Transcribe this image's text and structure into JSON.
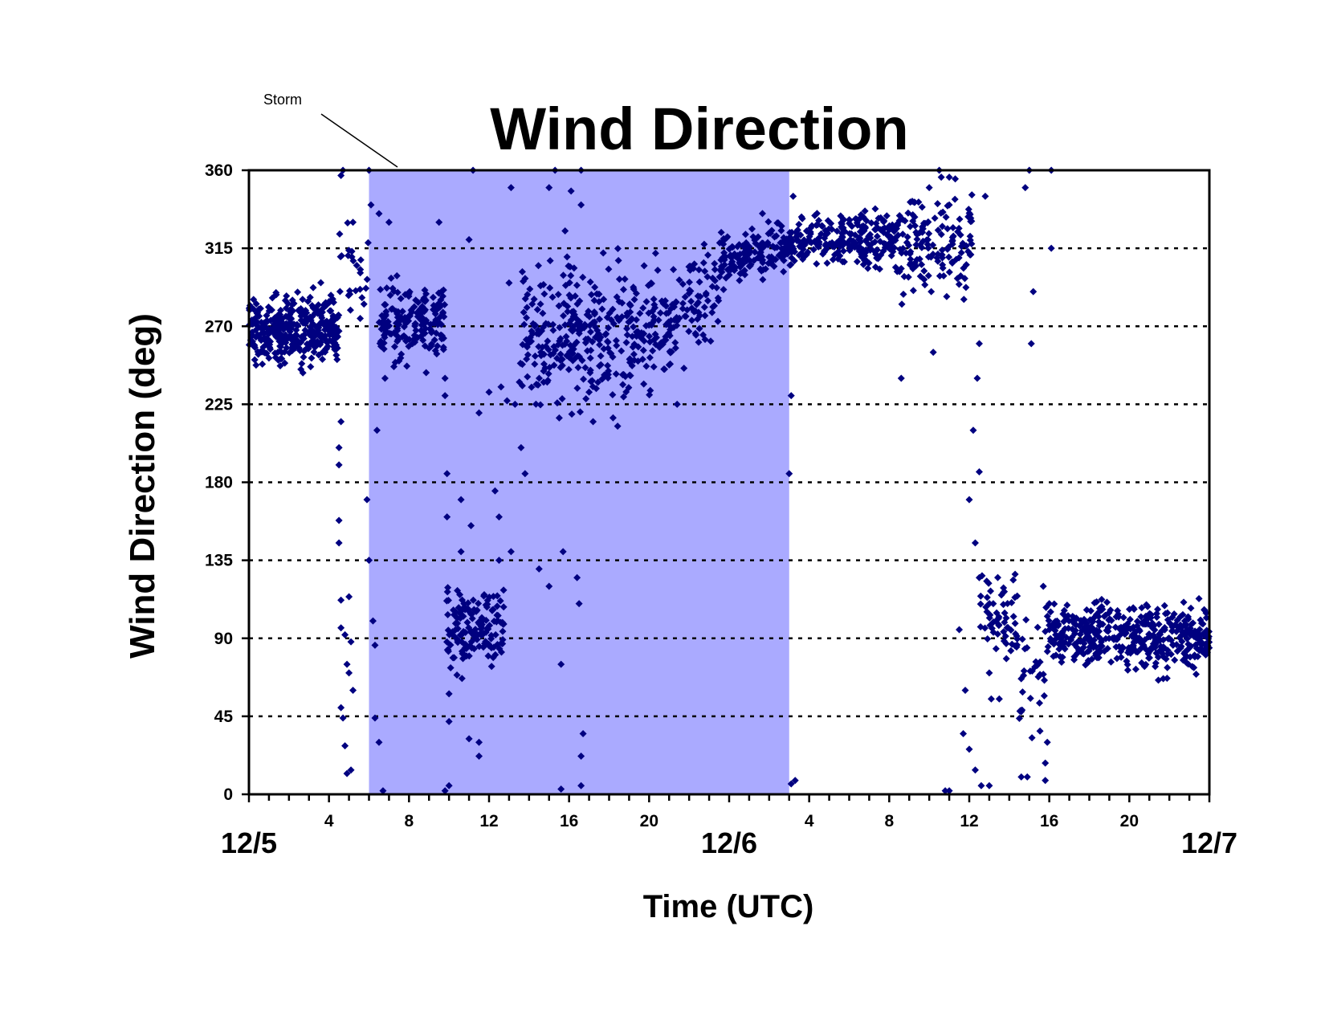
{
  "chart_data": {
    "type": "scatter",
    "title": "Wind Direction",
    "xlabel": "Time (UTC)",
    "ylabel": "Wind Direction (deg)",
    "ylim": [
      0,
      360
    ],
    "xlim_hours": [
      0,
      48
    ],
    "yticks": [
      "0",
      "45",
      "90",
      "135",
      "180",
      "225",
      "270",
      "315",
      "360"
    ],
    "xticks": [
      {
        "hour": 4,
        "label": "4"
      },
      {
        "hour": 8,
        "label": "8"
      },
      {
        "hour": 12,
        "label": "12"
      },
      {
        "hour": 16,
        "label": "16"
      },
      {
        "hour": 20,
        "label": "20"
      },
      {
        "hour": 28,
        "label": "4"
      },
      {
        "hour": 32,
        "label": "8"
      },
      {
        "hour": 36,
        "label": "12"
      },
      {
        "hour": 40,
        "label": "16"
      },
      {
        "hour": 44,
        "label": "20"
      }
    ],
    "date_labels": [
      {
        "hour": 0,
        "label": "12/5"
      },
      {
        "hour": 24,
        "label": "12/6"
      },
      {
        "hour": 48,
        "label": "12/7"
      }
    ],
    "grid": "horizontal dotted at 45,90,135,180,225,270,315",
    "shaded_region": {
      "label": "Storm",
      "start_hour": 6,
      "end_hour": 27,
      "color": "#aaaaff"
    },
    "marker": {
      "shape": "diamond",
      "color": "#000080"
    },
    "segments": [
      {
        "from": 0,
        "to": 4.5,
        "center": 268,
        "spread": 16,
        "trend": 0,
        "density": 80
      },
      {
        "from": 4.5,
        "to": 6,
        "center": 300,
        "spread": 20,
        "trend": 0,
        "density": 18
      },
      {
        "from": 6.5,
        "to": 9.8,
        "center": 272,
        "spread": 18,
        "trend": 0,
        "density": 55
      },
      {
        "from": 9.8,
        "to": 12.8,
        "center": 95,
        "spread": 18,
        "trend": 0,
        "density": 50
      },
      {
        "from": 13.5,
        "to": 20.5,
        "center": 265,
        "spread": 30,
        "trend": 10,
        "density": 48
      },
      {
        "from": 20.5,
        "to": 23.5,
        "center": 280,
        "spread": 20,
        "trend": 30,
        "density": 35
      },
      {
        "from": 23.5,
        "to": 27,
        "center": 312,
        "spread": 12,
        "trend": 10,
        "density": 45
      },
      {
        "from": 27,
        "to": 32.5,
        "center": 320,
        "spread": 12,
        "trend": 0,
        "density": 45
      },
      {
        "from": 32.5,
        "to": 36.2,
        "center": 318,
        "spread": 22,
        "trend": 0,
        "density": 38
      },
      {
        "from": 36.5,
        "to": 38.5,
        "center": 100,
        "spread": 22,
        "trend": -10,
        "density": 30
      },
      {
        "from": 38.5,
        "to": 39.8,
        "center": 70,
        "spread": 30,
        "trend": 0,
        "density": 22
      },
      {
        "from": 39.8,
        "to": 48,
        "center": 92,
        "spread": 14,
        "trend": -8,
        "density": 55
      }
    ],
    "scattered_points": [
      [
        4.6,
        357
      ],
      [
        4.7,
        360
      ],
      [
        5.2,
        330
      ],
      [
        4.5,
        200
      ],
      [
        4.6,
        215
      ],
      [
        4.5,
        190
      ],
      [
        4.5,
        158
      ],
      [
        4.5,
        145
      ],
      [
        4.6,
        112
      ],
      [
        5.0,
        114
      ],
      [
        4.6,
        96
      ],
      [
        4.8,
        92
      ],
      [
        5.1,
        88
      ],
      [
        4.9,
        75
      ],
      [
        5.0,
        70
      ],
      [
        4.6,
        50
      ],
      [
        4.7,
        44
      ],
      [
        5.2,
        60
      ],
      [
        4.8,
        28
      ],
      [
        4.9,
        12
      ],
      [
        5.1,
        14
      ],
      [
        5.9,
        170
      ],
      [
        6.0,
        135
      ],
      [
        6.2,
        100
      ],
      [
        6.3,
        86
      ],
      [
        6.3,
        44
      ],
      [
        6.5,
        30
      ],
      [
        6.7,
        2
      ],
      [
        6.0,
        360
      ],
      [
        6.1,
        340
      ],
      [
        6.5,
        335
      ],
      [
        7.0,
        330
      ],
      [
        6.4,
        210
      ],
      [
        6.8,
        240
      ],
      [
        7.5,
        250
      ],
      [
        9.5,
        330
      ],
      [
        9.8,
        240
      ],
      [
        9.8,
        230
      ],
      [
        9.9,
        185
      ],
      [
        9.9,
        160
      ],
      [
        10.0,
        58
      ],
      [
        10.0,
        42
      ],
      [
        9.8,
        2
      ],
      [
        10.0,
        5
      ],
      [
        10.6,
        170
      ],
      [
        10.6,
        140
      ],
      [
        11.2,
        360
      ],
      [
        11.0,
        320
      ],
      [
        11.5,
        220
      ],
      [
        11.1,
        155
      ],
      [
        11.5,
        30
      ],
      [
        11.5,
        22
      ],
      [
        11.0,
        32
      ],
      [
        12.0,
        232
      ],
      [
        12.3,
        175
      ],
      [
        12.5,
        160
      ],
      [
        12.6,
        235
      ],
      [
        12.9,
        227
      ],
      [
        13.1,
        350
      ],
      [
        13.0,
        295
      ],
      [
        12.5,
        135
      ],
      [
        13.1,
        140
      ],
      [
        13.3,
        225
      ],
      [
        13.6,
        200
      ],
      [
        13.8,
        185
      ],
      [
        15.0,
        350
      ],
      [
        15.3,
        360
      ],
      [
        15.8,
        325
      ],
      [
        15.9,
        310
      ],
      [
        16.1,
        348
      ],
      [
        14.5,
        130
      ],
      [
        15.0,
        120
      ],
      [
        15.6,
        75
      ],
      [
        15.7,
        140
      ],
      [
        16.5,
        110
      ],
      [
        16.4,
        125
      ],
      [
        16.7,
        35
      ],
      [
        16.6,
        22
      ],
      [
        16.6,
        5
      ],
      [
        15.6,
        3
      ],
      [
        17.0,
        232
      ],
      [
        17.2,
        215
      ],
      [
        16.6,
        360
      ],
      [
        16.6,
        340
      ],
      [
        21.4,
        225
      ],
      [
        27.1,
        230
      ],
      [
        27.0,
        185
      ],
      [
        27.2,
        345
      ],
      [
        27.3,
        8
      ],
      [
        27.1,
        6
      ],
      [
        34.5,
        360
      ],
      [
        34.6,
        356
      ],
      [
        35.0,
        356
      ],
      [
        35.3,
        355
      ],
      [
        34.0,
        350
      ],
      [
        35.0,
        340
      ],
      [
        34.8,
        2
      ],
      [
        35.0,
        2
      ],
      [
        34.1,
        290
      ],
      [
        34.2,
        255
      ],
      [
        32.6,
        240
      ],
      [
        36.8,
        345
      ],
      [
        36.5,
        260
      ],
      [
        36.4,
        240
      ],
      [
        36.2,
        210
      ],
      [
        36.5,
        186
      ],
      [
        36.0,
        170
      ],
      [
        36.3,
        145
      ],
      [
        36.5,
        125
      ],
      [
        37.2,
        110
      ],
      [
        35.5,
        95
      ],
      [
        36.6,
        5
      ],
      [
        36.3,
        14
      ],
      [
        36.0,
        26
      ],
      [
        35.8,
        60
      ],
      [
        35.7,
        35
      ],
      [
        37.0,
        70
      ],
      [
        37.1,
        55
      ],
      [
        37.0,
        5
      ],
      [
        37.5,
        55
      ],
      [
        39.0,
        360
      ],
      [
        38.8,
        350
      ],
      [
        39.2,
        290
      ],
      [
        39.1,
        260
      ],
      [
        38.9,
        10
      ],
      [
        38.6,
        10
      ],
      [
        40.1,
        360
      ],
      [
        40.1,
        315
      ],
      [
        39.8,
        8
      ],
      [
        39.8,
        18
      ],
      [
        39.9,
        30
      ],
      [
        39.7,
        120
      ],
      [
        40.0,
        110
      ],
      [
        40.0,
        95
      ]
    ]
  }
}
